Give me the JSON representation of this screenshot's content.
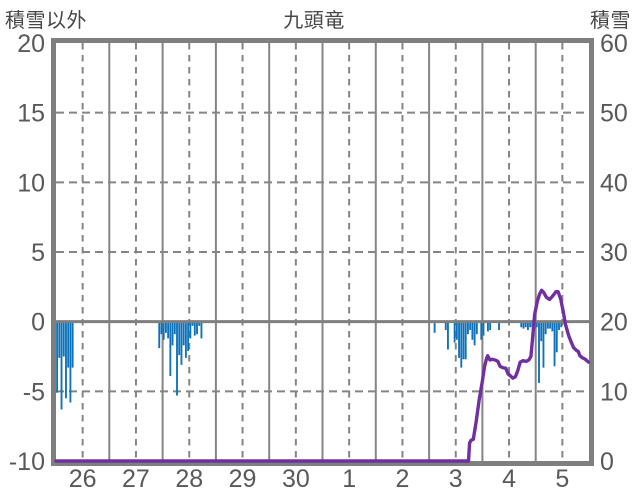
{
  "header": {
    "left_axis_title": "積雪以外",
    "title": "九頭竜",
    "right_axis_title": "積雪"
  },
  "chart_data": {
    "type": "bar",
    "title": "九頭竜",
    "subtitle": "",
    "grid": true,
    "legend": "none",
    "left_axis": {
      "title": "積雪以外",
      "min": -10,
      "max": 20,
      "ticks": [
        "20",
        "15",
        "10",
        "5",
        "0",
        "-5",
        "-10"
      ],
      "tick_values": [
        20,
        15,
        10,
        5,
        0,
        -5,
        -10
      ]
    },
    "right_axis": {
      "title": "積雪",
      "min": 0,
      "max": 60,
      "ticks": [
        "60",
        "50",
        "40",
        "30",
        "20",
        "10",
        "0"
      ],
      "tick_values": [
        60,
        50,
        40,
        30,
        20,
        10,
        0
      ]
    },
    "x_axis": {
      "labels": [
        "26",
        "27",
        "28",
        "29",
        "30",
        "1",
        "2",
        "3",
        "4",
        "5"
      ],
      "days": 10,
      "solid_gridlines": "day boundaries",
      "dashed_gridlines": "day midpoints"
    },
    "colors": {
      "bars": "#0D72BA",
      "line": "#7030A0",
      "grid": "#858585",
      "frame": "#7F7F7F",
      "zero_line": "#7F7F7F",
      "tick_text": "#595959",
      "title_text": "#474747",
      "background": "#FFFFFF"
    },
    "series": [
      {
        "name": "積雪以外",
        "type": "bar",
        "axis": "left",
        "unit": "",
        "note": "hourly bars hanging below 0; format [day_index, hour, value]; day_index 0 = label 26",
        "points": [
          [
            0,
            0,
            -5.1
          ],
          [
            0,
            1,
            -2.6
          ],
          [
            0,
            2,
            -6.3
          ],
          [
            0,
            3,
            -2.5
          ],
          [
            0,
            4,
            -5.5
          ],
          [
            0,
            5,
            -3.3
          ],
          [
            0,
            6,
            -5.8
          ],
          [
            0,
            7,
            -3.3
          ],
          [
            1,
            22,
            -1.9
          ],
          [
            1,
            23,
            -0.9
          ],
          [
            2,
            0,
            -1.3
          ],
          [
            2,
            1,
            -0.8
          ],
          [
            2,
            2,
            -1.2
          ],
          [
            2,
            3,
            -3.9
          ],
          [
            2,
            4,
            -1.7
          ],
          [
            2,
            5,
            -0.9
          ],
          [
            2,
            6,
            -5.3
          ],
          [
            2,
            7,
            -2.4
          ],
          [
            2,
            8,
            -3.1
          ],
          [
            2,
            9,
            -1.7
          ],
          [
            2,
            10,
            -2.6
          ],
          [
            2,
            11,
            -2.1
          ],
          [
            2,
            12,
            -1.2
          ],
          [
            2,
            13,
            -0.3
          ],
          [
            2,
            14,
            -1.0
          ],
          [
            2,
            15,
            -0.9
          ],
          [
            2,
            16,
            -0.3
          ],
          [
            2,
            17,
            -1.2
          ],
          [
            7,
            2,
            -0.8
          ],
          [
            7,
            7,
            -0.6
          ],
          [
            7,
            8,
            -2.0
          ],
          [
            7,
            11,
            -1.5
          ],
          [
            7,
            12,
            -1.3
          ],
          [
            7,
            13,
            -2.6
          ],
          [
            7,
            14,
            -3.3
          ],
          [
            7,
            15,
            -2.7
          ],
          [
            7,
            16,
            -2.7
          ],
          [
            7,
            17,
            -0.9
          ],
          [
            7,
            18,
            -0.6
          ],
          [
            7,
            19,
            -1.3
          ],
          [
            7,
            20,
            -1.7
          ],
          [
            7,
            21,
            -0.9
          ],
          [
            7,
            23,
            -1.3
          ],
          [
            8,
            0,
            -1.0
          ],
          [
            8,
            2,
            -0.7
          ],
          [
            8,
            3,
            -0.6
          ],
          [
            8,
            7,
            -0.6
          ],
          [
            8,
            17,
            -0.4
          ],
          [
            8,
            18,
            -0.5
          ],
          [
            8,
            19,
            -0.4
          ],
          [
            8,
            20,
            -0.6
          ],
          [
            8,
            21,
            -0.4
          ],
          [
            8,
            22,
            -0.4
          ],
          [
            8,
            23,
            -0.5
          ],
          [
            9,
            0,
            -0.4
          ],
          [
            9,
            1,
            -4.4
          ],
          [
            9,
            2,
            -1.4
          ],
          [
            9,
            3,
            -3.3
          ],
          [
            9,
            4,
            -0.9
          ],
          [
            9,
            5,
            -0.5
          ],
          [
            9,
            6,
            -0.5
          ],
          [
            9,
            7,
            -0.7
          ],
          [
            9,
            8,
            -3.2
          ],
          [
            9,
            9,
            -2.2
          ],
          [
            9,
            10,
            -0.6
          ],
          [
            9,
            11,
            -0.4
          ]
        ]
      },
      {
        "name": "積雪",
        "type": "line",
        "axis": "right",
        "unit": "cm",
        "note": "format [days since start of day 26, snow depth cm]",
        "points": [
          [
            0,
            0
          ],
          [
            7.74,
            0
          ],
          [
            7.76,
            2.6
          ],
          [
            7.79,
            3.0
          ],
          [
            7.83,
            3.1
          ],
          [
            7.88,
            5.5
          ],
          [
            7.94,
            8.8
          ],
          [
            8.0,
            11.5
          ],
          [
            8.04,
            13.5
          ],
          [
            8.08,
            14.8
          ],
          [
            8.1,
            15.1
          ],
          [
            8.14,
            14.5
          ],
          [
            8.18,
            14.6
          ],
          [
            8.24,
            14.5
          ],
          [
            8.29,
            14.3
          ],
          [
            8.33,
            13.6
          ],
          [
            8.38,
            13.4
          ],
          [
            8.44,
            13.3
          ],
          [
            8.48,
            12.5
          ],
          [
            8.53,
            12.2
          ],
          [
            8.57,
            11.9
          ],
          [
            8.62,
            12.1
          ],
          [
            8.66,
            12.9
          ],
          [
            8.71,
            14.2
          ],
          [
            8.76,
            14.4
          ],
          [
            8.82,
            14.3
          ],
          [
            8.87,
            14.5
          ],
          [
            8.91,
            15.0
          ],
          [
            8.94,
            17.5
          ],
          [
            8.98,
            21.0
          ],
          [
            9.03,
            22.9
          ],
          [
            9.07,
            23.9
          ],
          [
            9.11,
            24.5
          ],
          [
            9.15,
            24.2
          ],
          [
            9.2,
            23.5
          ],
          [
            9.26,
            23.2
          ],
          [
            9.32,
            23.7
          ],
          [
            9.38,
            24.3
          ],
          [
            9.42,
            24.3
          ],
          [
            9.47,
            23.2
          ],
          [
            9.52,
            21.3
          ],
          [
            9.56,
            19.6
          ],
          [
            9.62,
            18.0
          ],
          [
            9.67,
            17.0
          ],
          [
            9.71,
            16.3
          ],
          [
            9.76,
            15.9
          ],
          [
            9.8,
            15.7
          ],
          [
            9.83,
            15.1
          ],
          [
            9.88,
            14.8
          ],
          [
            9.93,
            14.6
          ],
          [
            9.99,
            14.2
          ]
        ]
      }
    ]
  }
}
